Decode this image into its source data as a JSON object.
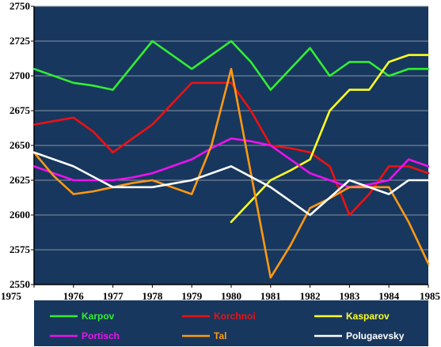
{
  "chart_data": {
    "type": "line",
    "title": "",
    "xlabel": "",
    "ylabel": "",
    "xlim": [
      1975,
      1985
    ],
    "ylim": [
      2550,
      2750
    ],
    "y_ticks": [
      2550,
      2575,
      2600,
      2625,
      2650,
      2675,
      2700,
      2725,
      2750
    ],
    "x_ticks": [
      1975,
      1976,
      1977,
      1978,
      1979,
      1980,
      1981,
      1982,
      1983,
      1984,
      1985
    ],
    "grid": "horizontal",
    "plot_background": "#17375e",
    "legend_background": "#17375e",
    "legend_position": "bottom",
    "series": [
      {
        "name": "Karpov",
        "color": "#33ee33",
        "x": [
          1975,
          1976,
          1976.5,
          1977,
          1978,
          1978.5,
          1979,
          1979.5,
          1980,
          1980.5,
          1981,
          1981.5,
          1982,
          1982.5,
          1983,
          1983.5,
          1984,
          1984.5,
          1985
        ],
        "y": [
          2705,
          2695,
          2693,
          2690,
          2725,
          2715,
          2705,
          2715,
          2725,
          2710,
          2690,
          2705,
          2720,
          2700,
          2710,
          2710,
          2700,
          2705,
          2705
        ]
      },
      {
        "name": "Korchnoi",
        "color": "#ee1111",
        "x": [
          1975,
          1976,
          1976.5,
          1977,
          1977.5,
          1978,
          1978.5,
          1979,
          1979.5,
          1980,
          1980.5,
          1981,
          1981.5,
          1982,
          1982.5,
          1983,
          1983.5,
          1984,
          1984.5,
          1985
        ],
        "y": [
          2665,
          2670,
          2660,
          2645,
          2655,
          2665,
          2680,
          2695,
          2695,
          2695,
          2675,
          2650,
          2648,
          2645,
          2635,
          2600,
          2615,
          2635,
          2635,
          2630
        ]
      },
      {
        "name": "Kasparov",
        "color": "#ffff22",
        "x": [
          1980,
          1980.5,
          1981,
          1981.5,
          1982,
          1982.5,
          1983,
          1983.5,
          1984,
          1984.5,
          1985
        ],
        "y": [
          2595,
          2610,
          2625,
          2632,
          2640,
          2675,
          2690,
          2690,
          2710,
          2715,
          2715
        ]
      },
      {
        "name": "Portisch",
        "color": "#ee11ee",
        "x": [
          1975,
          1975.5,
          1976,
          1976.5,
          1977,
          1977.5,
          1978,
          1978.5,
          1979,
          1979.5,
          1980,
          1980.5,
          1981,
          1981.5,
          1982,
          1982.5,
          1983,
          1983.5,
          1984,
          1984.5,
          1985
        ],
        "y": [
          2635,
          2630,
          2625,
          2625,
          2625,
          2627,
          2630,
          2635,
          2640,
          2648,
          2655,
          2653,
          2650,
          2640,
          2630,
          2625,
          2620,
          2622,
          2625,
          2640,
          2635
        ]
      },
      {
        "name": "Tal",
        "color": "#ff9911",
        "x": [
          1975,
          1975.5,
          1976,
          1976.5,
          1977,
          1977.5,
          1978,
          1978.5,
          1979,
          1979.5,
          1980,
          1980.5,
          1981,
          1981.5,
          1982,
          1982.5,
          1983,
          1983.5,
          1984,
          1984.5,
          1985
        ],
        "y": [
          2645,
          2628,
          2615,
          2617,
          2620,
          2623,
          2625,
          2620,
          2615,
          2650,
          2705,
          2630,
          2555,
          2578,
          2605,
          2612,
          2620,
          2620,
          2620,
          2595,
          2565
        ]
      },
      {
        "name": "Polugaevsky",
        "color": "#ffffff",
        "x": [
          1975,
          1976,
          1977,
          1978,
          1979,
          1980,
          1981,
          1982,
          1983,
          1984,
          1984.5,
          1985
        ],
        "y": [
          2645,
          2635,
          2620,
          2620,
          2625,
          2635,
          2620,
          2600,
          2625,
          2615,
          2625,
          2625
        ]
      }
    ]
  }
}
